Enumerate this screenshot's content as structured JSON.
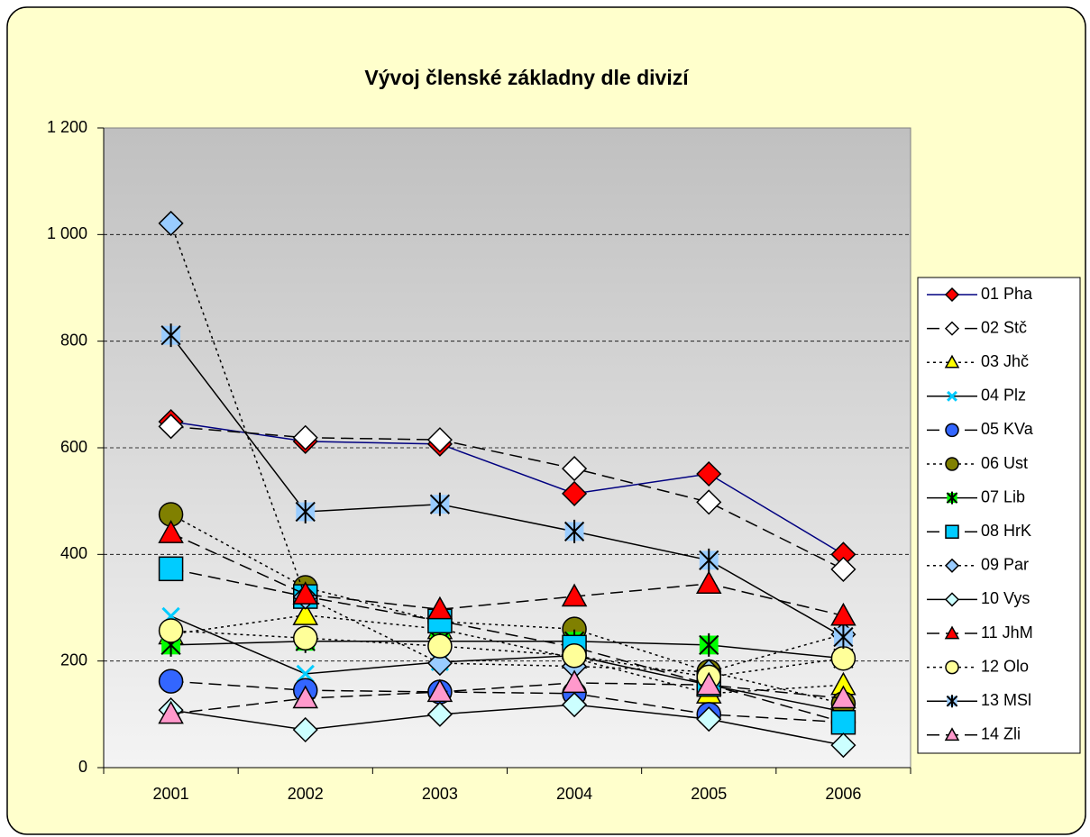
{
  "chart_data": {
    "type": "line",
    "title": "Vývoj členské základny dle divizí",
    "categories": [
      "2001",
      "2002",
      "2003",
      "2004",
      "2005",
      "2006"
    ],
    "ylim": [
      0,
      1200
    ],
    "yticks": [
      0,
      200,
      400,
      600,
      800,
      {
        "value": 1000,
        "label": "1 000"
      },
      {
        "value": 1200,
        "label": "1 200"
      }
    ],
    "grid": true,
    "legend": "right",
    "series": [
      {
        "name": "01 Pha",
        "color": "#ff0000",
        "line_color": "#000080",
        "dash": "solid",
        "marker": "diamond",
        "values": [
          649,
          612,
          607,
          514,
          551,
          400
        ]
      },
      {
        "name": "02 Stč",
        "color": "#ffffff",
        "line_color": "#000000",
        "dash": "dashed",
        "marker": "diamond",
        "values": [
          640,
          619,
          615,
          561,
          498,
          372
        ]
      },
      {
        "name": "03 Jhč",
        "color": "#ffff00",
        "line_color": "#000000",
        "dash": "dotted",
        "marker": "triangle",
        "values": [
          250,
          286,
          260,
          205,
          139,
          155
        ]
      },
      {
        "name": "04 Plz",
        "color": "#00ccff",
        "line_color": "#000000",
        "dash": "solid",
        "marker": "x",
        "values": [
          284,
          176,
          198,
          210,
          155,
          105
        ]
      },
      {
        "name": "05 KVa",
        "color": "#3366ff",
        "line_color": "#000000",
        "dash": "dashed",
        "marker": "circle",
        "values": [
          162,
          145,
          142,
          139,
          100,
          85
        ]
      },
      {
        "name": "06 Ust",
        "color": "#808000",
        "line_color": "#000000",
        "dash": "dotted",
        "marker": "circle",
        "values": [
          475,
          338,
          274,
          260,
          180,
          120
        ]
      },
      {
        "name": "07 Lib",
        "color": "#00ff00",
        "line_color": "#000000",
        "dash": "solid",
        "marker": "star",
        "values": [
          230,
          237,
          237,
          237,
          230,
          205
        ]
      },
      {
        "name": "08 HrK",
        "color": "#00ccff",
        "line_color": "#000000",
        "dash": "dashed",
        "marker": "square",
        "values": [
          373,
          321,
          275,
          226,
          156,
          85
        ]
      },
      {
        "name": "09 Par",
        "color": "#99ccff",
        "line_color": "#000000",
        "dash": "dotted",
        "marker": "diamond",
        "values": [
          1021,
          320,
          196,
          190,
          180,
          250
        ]
      },
      {
        "name": "10 Vys",
        "color": "#ccffff",
        "line_color": "#000000",
        "dash": "solid",
        "marker": "diamond",
        "values": [
          108,
          71,
          100,
          118,
          91,
          42
        ]
      },
      {
        "name": "11 JhM",
        "color": "#ff0000",
        "line_color": "#000000",
        "dash": "dashed",
        "marker": "triangle",
        "values": [
          440,
          325,
          297,
          321,
          345,
          285
        ]
      },
      {
        "name": "12 Olo",
        "color": "#ffff99",
        "line_color": "#000000",
        "dash": "dotted",
        "marker": "circle",
        "values": [
          257,
          243,
          228,
          210,
          170,
          205
        ]
      },
      {
        "name": "13 MSl",
        "color": "#99ccff",
        "line_color": "#000000",
        "dash": "solid",
        "marker": "star",
        "values": [
          811,
          480,
          494,
          443,
          389,
          245
        ]
      },
      {
        "name": "14 Zli",
        "color": "#ff99cc",
        "line_color": "#000000",
        "dash": "dashed",
        "marker": "triangle",
        "values": [
          101,
          130,
          142,
          159,
          155,
          130
        ]
      }
    ]
  }
}
